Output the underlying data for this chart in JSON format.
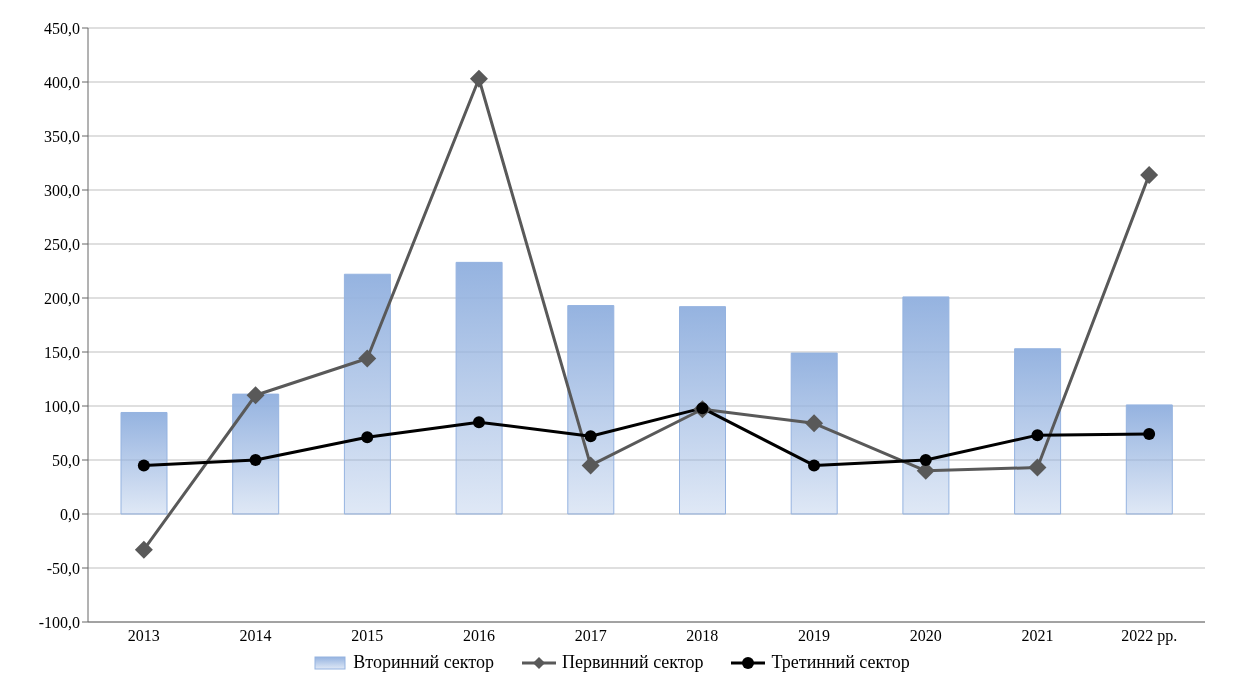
{
  "chart_data": {
    "type": "bar",
    "categories": [
      "2013",
      "2014",
      "2015",
      "2016",
      "2017",
      "2018",
      "2019",
      "2020",
      "2021",
      "2022 рр."
    ],
    "series": [
      {
        "name": "Вторинний сектор",
        "color": "#95b3e0",
        "values": [
          94,
          111,
          222,
          233,
          193,
          192,
          149,
          201,
          153,
          101
        ]
      },
      {
        "name": "Первинний сектор",
        "type": "line",
        "marker": "diamond",
        "color": "#595959",
        "values": [
          -33,
          110,
          144,
          403,
          45,
          97,
          84,
          40,
          43,
          314
        ]
      },
      {
        "name": "Третинний сектор",
        "type": "line",
        "marker": "circle",
        "color": "#000000",
        "values": [
          45,
          50,
          71,
          85,
          72,
          98,
          45,
          50,
          73,
          74
        ]
      }
    ],
    "ylim": [
      -100,
      450
    ],
    "yticks": [
      {
        "value": -100,
        "label": "-100,0"
      },
      {
        "value": -50,
        "label": "-50,0"
      },
      {
        "value": 0,
        "label": "0,0"
      },
      {
        "value": 50,
        "label": "50,0"
      },
      {
        "value": 100,
        "label": "100,0"
      },
      {
        "value": 150,
        "label": "150,0"
      },
      {
        "value": 200,
        "label": "200,0"
      },
      {
        "value": 250,
        "label": "250,0"
      },
      {
        "value": 300,
        "label": "300,0"
      },
      {
        "value": 350,
        "label": "350,0"
      },
      {
        "value": 400,
        "label": "400,0"
      },
      {
        "value": 450,
        "label": "450,0"
      }
    ],
    "grid": "y",
    "legend": "bottom"
  }
}
